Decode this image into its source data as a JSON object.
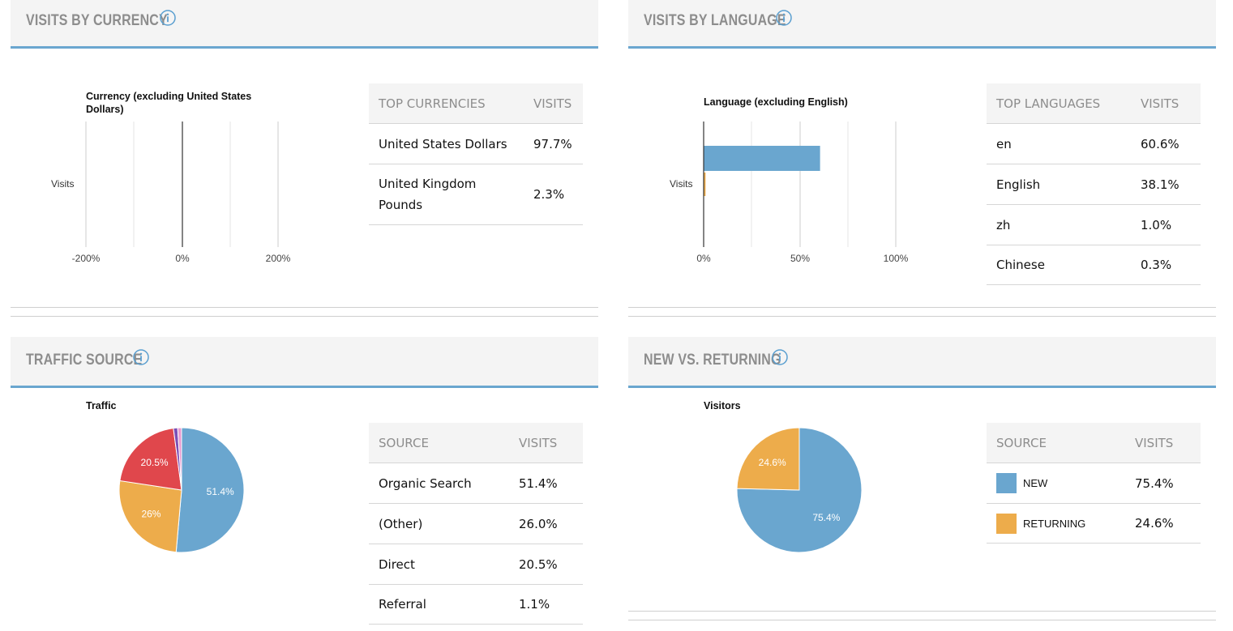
{
  "panels": {
    "currency": {
      "title": "VISITS BY CURRENCY",
      "table": {
        "headers": [
          "TOP CURRENCIES",
          "VISITS"
        ],
        "rows": [
          {
            "name": "United States Dollars",
            "visits": "97.7%"
          },
          {
            "name": "United Kingdom Pounds",
            "visits": "2.3%"
          }
        ]
      }
    },
    "language": {
      "title": "VISITS BY LANGUAGE",
      "table": {
        "headers": [
          "TOP LANGUAGES",
          "VISITS"
        ],
        "rows": [
          {
            "name": "en",
            "visits": "60.6%"
          },
          {
            "name": "English",
            "visits": "38.1%"
          },
          {
            "name": "zh",
            "visits": "1.0%"
          },
          {
            "name": "Chinese",
            "visits": "0.3%"
          }
        ]
      }
    },
    "traffic": {
      "title": "TRAFFIC SOURCE",
      "table": {
        "headers": [
          "SOURCE",
          "VISITS"
        ],
        "rows": [
          {
            "name": "Organic Search",
            "visits": "51.4%"
          },
          {
            "name": "(Other)",
            "visits": "26.0%"
          },
          {
            "name": "Direct",
            "visits": "20.5%"
          },
          {
            "name": "Referral",
            "visits": "1.1%"
          }
        ]
      }
    },
    "newreturning": {
      "title": "NEW VS. RETURNING",
      "table": {
        "headers": [
          "SOURCE",
          "VISITS"
        ],
        "rows": [
          {
            "name": "NEW",
            "visits": "75.4%",
            "color": "#6aa6cf"
          },
          {
            "name": "RETURNING",
            "visits": "24.6%",
            "color": "#edac4b"
          }
        ]
      }
    }
  },
  "chart_data": [
    {
      "type": "bar",
      "orientation": "horizontal",
      "title": "Currency (excluding United States Dollars)",
      "ylabel": "Visits",
      "xlim": [
        -200,
        200
      ],
      "x_ticks": [
        "-200%",
        "0%",
        "200%"
      ],
      "series": [],
      "grid": true
    },
    {
      "type": "bar",
      "orientation": "horizontal",
      "title": "Language (excluding English)",
      "ylabel": "Visits",
      "xlim": [
        0,
        100
      ],
      "x_ticks": [
        "0%",
        "50%",
        "100%"
      ],
      "series": [
        {
          "name": "en",
          "value": 60.6,
          "color": "#6aa6cf"
        },
        {
          "name": "zh",
          "value": 1.0,
          "color": "#edac4b"
        }
      ],
      "grid": true
    },
    {
      "type": "pie",
      "title": "Traffic",
      "slices": [
        {
          "name": "Organic Search",
          "value": 51.4,
          "label": "51.4%",
          "color": "#6aa6cf"
        },
        {
          "name": "(Other)",
          "value": 26.0,
          "label": "26%",
          "color": "#edac4b"
        },
        {
          "name": "Direct",
          "value": 20.5,
          "label": "20.5%",
          "color": "#e0474c"
        },
        {
          "name": "Referral",
          "value": 1.1,
          "label": "",
          "color": "#7b4fb5"
        },
        {
          "name": "",
          "value": 1.0,
          "label": "",
          "color": "#e89ad0"
        }
      ]
    },
    {
      "type": "pie",
      "title": "Visitors",
      "slices": [
        {
          "name": "NEW",
          "value": 75.4,
          "label": "75.4%",
          "color": "#6aa6cf"
        },
        {
          "name": "RETURNING",
          "value": 24.6,
          "label": "24.6%",
          "color": "#edac4b"
        }
      ]
    }
  ]
}
